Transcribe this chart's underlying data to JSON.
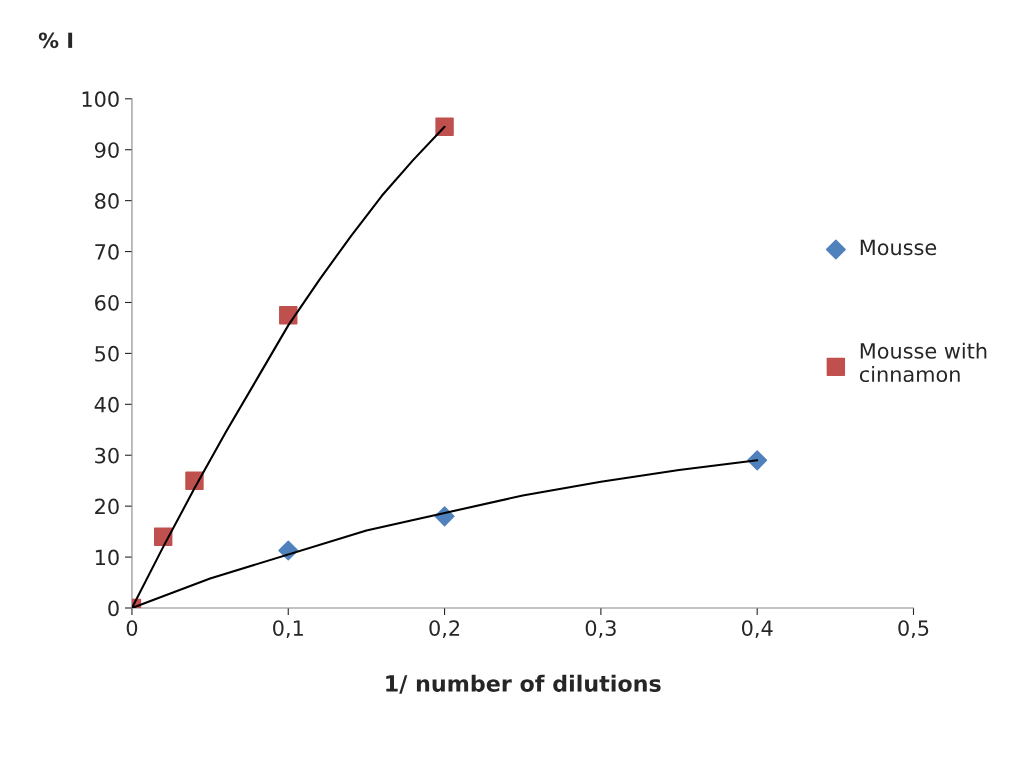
{
  "chart_data": {
    "type": "scatter",
    "ylabel": "% I",
    "xlabel": "1/ number of dilutions",
    "xlim": [
      0,
      0.5
    ],
    "xticks": [
      0,
      {
        "value": 0.1,
        "label": "0,1"
      },
      {
        "value": 0.2,
        "label": "0,2"
      },
      {
        "value": 0.3,
        "label": "0,3"
      },
      {
        "value": 0.4,
        "label": "0,4"
      },
      {
        "value": 0.5,
        "label": "0,5"
      }
    ],
    "ylim": [
      0,
      100
    ],
    "yticks": [
      0,
      10,
      20,
      30,
      40,
      50,
      60,
      70,
      80,
      90,
      100
    ],
    "grid": false,
    "legend": "right",
    "series": [
      {
        "name": "Mousse",
        "marker": "diamond",
        "color": "#4f81bd",
        "x": [
          0.1,
          0.2,
          0.4
        ],
        "values": [
          11.3,
          18,
          29
        ]
      },
      {
        "name": "Mousse with cinnamon",
        "marker": "square",
        "color": "#c0504d",
        "x": [
          0,
          0.02,
          0.04,
          0.1,
          0.2
        ],
        "values": [
          0,
          14,
          25,
          57.5,
          94.5
        ]
      },
      {
        "type": "line",
        "marker": "none",
        "color": "#000000",
        "x": [
          0,
          0.05,
          0.15,
          0.25,
          0.3,
          0.35,
          0.4
        ],
        "values": [
          0,
          5.8,
          15.2,
          22.1,
          24.8,
          27.1,
          29
        ]
      },
      {
        "type": "line",
        "marker": "none",
        "color": "#000000",
        "x": [
          0,
          0.02,
          0.04,
          0.06,
          0.08,
          0.1,
          0.12,
          0.14,
          0.16,
          0.18,
          0.2
        ],
        "values": [
          0,
          12,
          23.5,
          34.5,
          45,
          55.5,
          64.5,
          73,
          81,
          88,
          94.5
        ]
      }
    ]
  }
}
